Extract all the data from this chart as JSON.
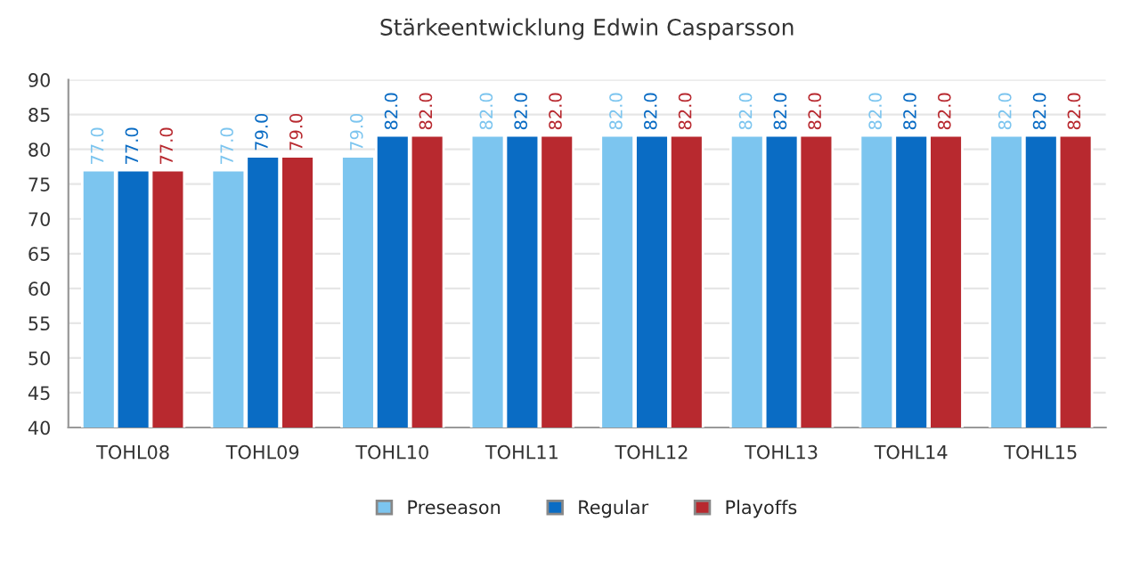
{
  "chart_data": {
    "type": "bar",
    "title": "Stärkeentwicklung Edwin Casparsson",
    "categories": [
      "TOHL08",
      "TOHL09",
      "TOHL10",
      "TOHL11",
      "TOHL12",
      "TOHL13",
      "TOHL14",
      "TOHL15"
    ],
    "series": [
      {
        "name": "Preseason",
        "color": "#7cc5ef",
        "values": [
          77,
          77,
          79,
          82,
          82,
          82,
          82,
          82
        ],
        "value_labels": [
          "77.0",
          "77.0",
          "79.0",
          "82.0",
          "82.0",
          "82.0",
          "82.0",
          "82.0"
        ]
      },
      {
        "name": "Regular",
        "color": "#0a6cc4",
        "values": [
          77,
          79,
          82,
          82,
          82,
          82,
          82,
          82
        ],
        "value_labels": [
          "77.0",
          "79.0",
          "82.0",
          "82.0",
          "82.0",
          "82.0",
          "82.0",
          "82.0"
        ]
      },
      {
        "name": "Playoffs",
        "color": "#b8292f",
        "values": [
          77,
          79,
          82,
          82,
          82,
          82,
          82,
          82
        ],
        "value_labels": [
          "77.0",
          "79.0",
          "82.0",
          "82.0",
          "82.0",
          "82.0",
          "82.0",
          "82.0"
        ]
      }
    ],
    "ylim": [
      40,
      90
    ],
    "yticks": [
      40,
      45,
      50,
      55,
      60,
      65,
      70,
      75,
      80,
      85,
      90
    ],
    "grid": "y",
    "legend": "bottom"
  }
}
